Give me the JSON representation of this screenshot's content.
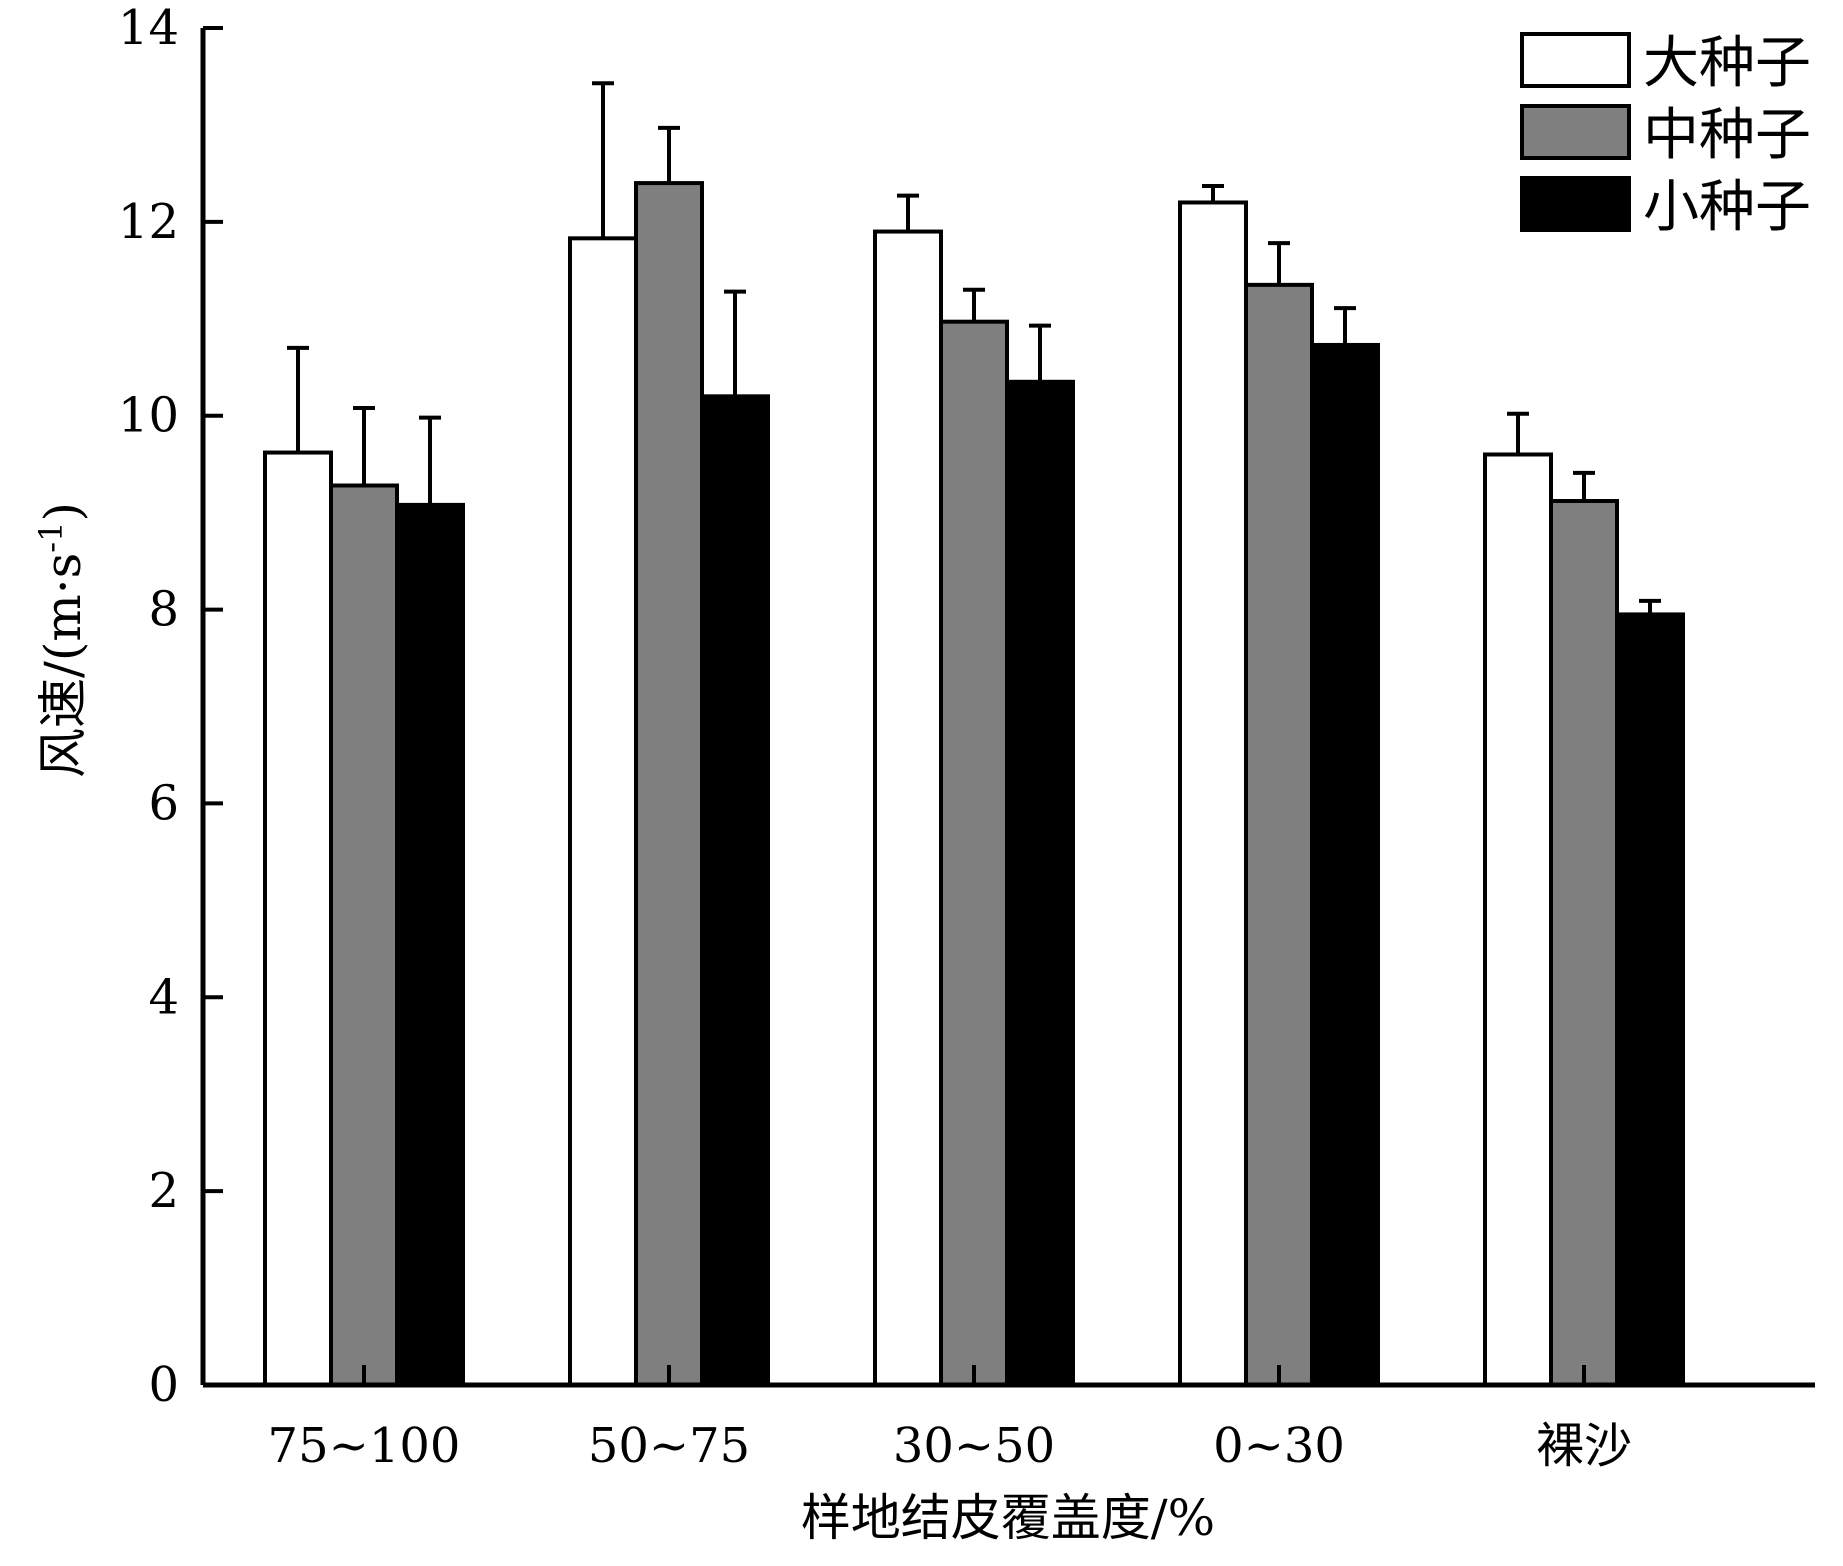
{
  "chart_data": {
    "type": "bar",
    "xlabel": "样地结皮覆盖度/%",
    "ylabel": "风速/(m·s",
    "ylabel_sup": "-1",
    "ylabel_close": ")",
    "ylim": [
      0,
      14
    ],
    "yticks": [
      0,
      2,
      4,
      6,
      8,
      10,
      12,
      14
    ],
    "categories": [
      "75~100",
      "50~75",
      "30~50",
      "0~30",
      "裸沙"
    ],
    "series": [
      {
        "name": "大种子",
        "color": "#ffffff",
        "values": [
          9.62,
          11.83,
          11.9,
          12.2,
          9.6
        ],
        "errors": [
          1.08,
          1.6,
          0.37,
          0.17,
          0.42
        ]
      },
      {
        "name": "中种子",
        "color": "#7f7f7f",
        "values": [
          9.28,
          12.4,
          10.97,
          11.35,
          9.12
        ],
        "errors": [
          0.8,
          0.57,
          0.33,
          0.43,
          0.29
        ]
      },
      {
        "name": "小种子",
        "color": "#000000",
        "values": [
          9.08,
          10.2,
          10.35,
          10.73,
          7.95
        ],
        "errors": [
          0.9,
          1.08,
          0.58,
          0.38,
          0.14
        ]
      }
    ],
    "legend_position": "top-right",
    "grid": false
  }
}
